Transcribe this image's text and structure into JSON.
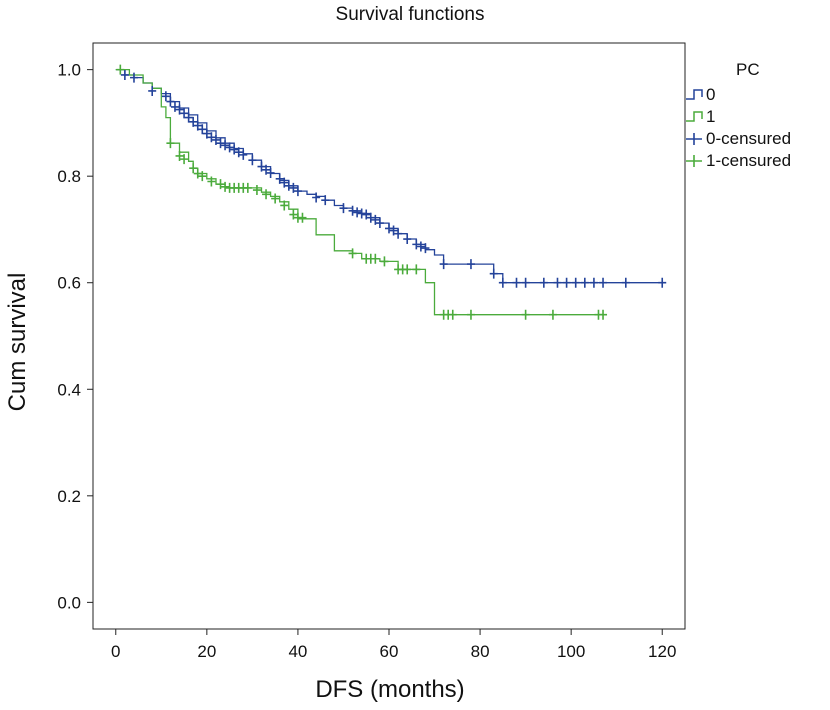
{
  "chart_data": {
    "type": "line",
    "title": "Survival functions",
    "xlabel": "DFS (months)",
    "ylabel": "Cum survival",
    "xlim": [
      -5,
      125
    ],
    "ylim": [
      -0.05,
      1.05
    ],
    "xticks": [
      "0",
      "20",
      "40",
      "60",
      "80",
      "100",
      "120"
    ],
    "yticks": [
      "0.0",
      "0.2",
      "0.4",
      "0.6",
      "0.8",
      "1.0"
    ],
    "grid": false,
    "legend_placement": "right",
    "legend_title": "PC",
    "legend": [
      "0",
      "1",
      "0-censured",
      "1-censured"
    ],
    "series": [
      {
        "name": "0",
        "color": "#24439a",
        "steps": [
          [
            0,
            1.0
          ],
          [
            2,
            0.99
          ],
          [
            4,
            0.985
          ],
          [
            6,
            0.975
          ],
          [
            8,
            0.965
          ],
          [
            10,
            0.955
          ],
          [
            12,
            0.94
          ],
          [
            14,
            0.928
          ],
          [
            16,
            0.915
          ],
          [
            18,
            0.9
          ],
          [
            20,
            0.885
          ],
          [
            22,
            0.872
          ],
          [
            24,
            0.862
          ],
          [
            26,
            0.852
          ],
          [
            28,
            0.842
          ],
          [
            30,
            0.83
          ],
          [
            32,
            0.818
          ],
          [
            34,
            0.805
          ],
          [
            36,
            0.792
          ],
          [
            38,
            0.782
          ],
          [
            40,
            0.772
          ],
          [
            42,
            0.766
          ],
          [
            44,
            0.762
          ],
          [
            46,
            0.755
          ],
          [
            48,
            0.745
          ],
          [
            50,
            0.74
          ],
          [
            52,
            0.735
          ],
          [
            54,
            0.73
          ],
          [
            56,
            0.722
          ],
          [
            58,
            0.712
          ],
          [
            60,
            0.702
          ],
          [
            62,
            0.692
          ],
          [
            64,
            0.682
          ],
          [
            66,
            0.672
          ],
          [
            68,
            0.662
          ],
          [
            70,
            0.652
          ],
          [
            72,
            0.635
          ],
          [
            78,
            0.635
          ],
          [
            83,
            0.617
          ],
          [
            85,
            0.6
          ],
          [
            120,
            0.6
          ]
        ],
        "censored": [
          [
            2,
            0.99
          ],
          [
            4,
            0.985
          ],
          [
            8,
            0.96
          ],
          [
            11,
            0.95
          ],
          [
            12,
            0.94
          ],
          [
            13,
            0.93
          ],
          [
            14,
            0.925
          ],
          [
            15,
            0.918
          ],
          [
            16,
            0.91
          ],
          [
            17,
            0.902
          ],
          [
            18,
            0.895
          ],
          [
            19,
            0.888
          ],
          [
            20,
            0.88
          ],
          [
            21,
            0.873
          ],
          [
            22,
            0.868
          ],
          [
            23,
            0.862
          ],
          [
            24,
            0.858
          ],
          [
            25,
            0.854
          ],
          [
            26,
            0.85
          ],
          [
            27,
            0.845
          ],
          [
            28,
            0.84
          ],
          [
            30,
            0.83
          ],
          [
            32,
            0.818
          ],
          [
            33,
            0.812
          ],
          [
            34,
            0.806
          ],
          [
            36,
            0.795
          ],
          [
            37,
            0.788
          ],
          [
            38,
            0.782
          ],
          [
            39,
            0.778
          ],
          [
            40,
            0.772
          ],
          [
            44,
            0.76
          ],
          [
            46,
            0.755
          ],
          [
            50,
            0.74
          ],
          [
            52,
            0.735
          ],
          [
            53,
            0.732
          ],
          [
            54,
            0.73
          ],
          [
            55,
            0.728
          ],
          [
            56,
            0.722
          ],
          [
            57,
            0.718
          ],
          [
            58,
            0.712
          ],
          [
            60,
            0.702
          ],
          [
            61,
            0.698
          ],
          [
            62,
            0.692
          ],
          [
            64,
            0.682
          ],
          [
            66,
            0.672
          ],
          [
            67,
            0.668
          ],
          [
            68,
            0.665
          ],
          [
            72,
            0.635
          ],
          [
            78,
            0.635
          ],
          [
            83,
            0.617
          ],
          [
            85,
            0.6
          ],
          [
            88,
            0.6
          ],
          [
            90,
            0.6
          ],
          [
            94,
            0.6
          ],
          [
            97,
            0.6
          ],
          [
            99,
            0.6
          ],
          [
            101,
            0.6
          ],
          [
            103,
            0.6
          ],
          [
            105,
            0.6
          ],
          [
            107,
            0.6
          ],
          [
            112,
            0.6
          ],
          [
            120,
            0.6
          ]
        ]
      },
      {
        "name": "1",
        "color": "#4bab3c",
        "steps": [
          [
            0,
            1.0
          ],
          [
            3,
            0.99
          ],
          [
            6,
            0.975
          ],
          [
            8,
            0.965
          ],
          [
            10,
            0.93
          ],
          [
            11,
            0.91
          ],
          [
            12,
            0.862
          ],
          [
            14,
            0.845
          ],
          [
            16,
            0.828
          ],
          [
            17,
            0.815
          ],
          [
            18,
            0.805
          ],
          [
            20,
            0.795
          ],
          [
            22,
            0.785
          ],
          [
            24,
            0.778
          ],
          [
            30,
            0.778
          ],
          [
            32,
            0.77
          ],
          [
            34,
            0.762
          ],
          [
            36,
            0.752
          ],
          [
            38,
            0.738
          ],
          [
            40,
            0.72
          ],
          [
            44,
            0.69
          ],
          [
            48,
            0.66
          ],
          [
            52,
            0.655
          ],
          [
            54,
            0.645
          ],
          [
            58,
            0.64
          ],
          [
            62,
            0.625
          ],
          [
            67,
            0.625
          ],
          [
            68,
            0.6
          ],
          [
            70,
            0.54
          ],
          [
            107,
            0.54
          ]
        ],
        "censored": [
          [
            1,
            1.0
          ],
          [
            12,
            0.862
          ],
          [
            14,
            0.838
          ],
          [
            15,
            0.832
          ],
          [
            17,
            0.815
          ],
          [
            18,
            0.805
          ],
          [
            19,
            0.8
          ],
          [
            21,
            0.79
          ],
          [
            23,
            0.785
          ],
          [
            24,
            0.78
          ],
          [
            25,
            0.778
          ],
          [
            26,
            0.778
          ],
          [
            27,
            0.778
          ],
          [
            28,
            0.778
          ],
          [
            29,
            0.778
          ],
          [
            31,
            0.774
          ],
          [
            33,
            0.766
          ],
          [
            35,
            0.758
          ],
          [
            37,
            0.745
          ],
          [
            39,
            0.728
          ],
          [
            40,
            0.722
          ],
          [
            41,
            0.722
          ],
          [
            52,
            0.655
          ],
          [
            55,
            0.645
          ],
          [
            56,
            0.645
          ],
          [
            57,
            0.645
          ],
          [
            59,
            0.64
          ],
          [
            62,
            0.625
          ],
          [
            63,
            0.625
          ],
          [
            64,
            0.625
          ],
          [
            66,
            0.625
          ],
          [
            72,
            0.54
          ],
          [
            73,
            0.54
          ],
          [
            74,
            0.54
          ],
          [
            78,
            0.54
          ],
          [
            90,
            0.54
          ],
          [
            96,
            0.54
          ],
          [
            106,
            0.54
          ],
          [
            107,
            0.54
          ]
        ]
      }
    ]
  }
}
